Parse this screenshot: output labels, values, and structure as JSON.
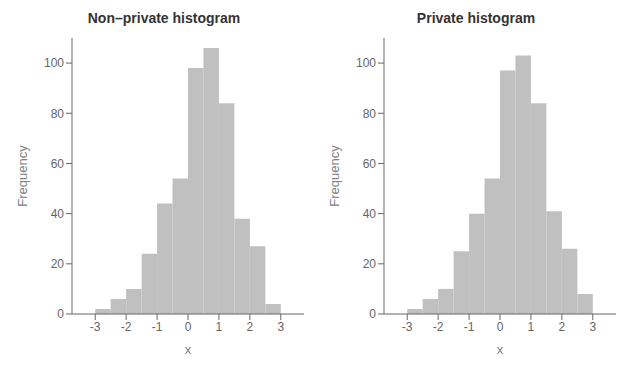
{
  "chart_data": [
    {
      "type": "histogram",
      "title": "Non–private histogram",
      "xlabel": "x",
      "ylabel": "Frequency",
      "bins": [
        -3.0,
        -2.5,
        -2.0,
        -1.5,
        -1.0,
        -0.5,
        0.0,
        0.5,
        1.0,
        1.5,
        2.0,
        2.5,
        3.0
      ],
      "values": [
        2,
        6,
        10,
        24,
        44,
        54,
        98,
        106,
        84,
        38,
        27,
        4
      ],
      "color": "#c0c0c0",
      "xlim": [
        -3.75,
        3.75
      ],
      "ylim": [
        0,
        110
      ],
      "xticks": [
        -3,
        -2,
        -1,
        0,
        1,
        2,
        3
      ],
      "yticks": [
        0,
        20,
        40,
        60,
        80,
        100
      ],
      "grid": false
    },
    {
      "type": "histogram",
      "title": "Private histogram",
      "xlabel": "x",
      "ylabel": "Frequency",
      "bins": [
        -3.0,
        -2.5,
        -2.0,
        -1.5,
        -1.0,
        -0.5,
        0.0,
        0.5,
        1.0,
        1.5,
        2.0,
        2.5,
        3.0
      ],
      "values": [
        2,
        6,
        10,
        25,
        40,
        54,
        97,
        103,
        84,
        41,
        26,
        8
      ],
      "color": "#c0c0c0",
      "xlim": [
        -3.75,
        3.75
      ],
      "ylim": [
        0,
        110
      ],
      "xticks": [
        -3,
        -2,
        -1,
        0,
        1,
        2,
        3
      ],
      "yticks": [
        0,
        20,
        40,
        60,
        80,
        100
      ],
      "grid": false
    }
  ]
}
